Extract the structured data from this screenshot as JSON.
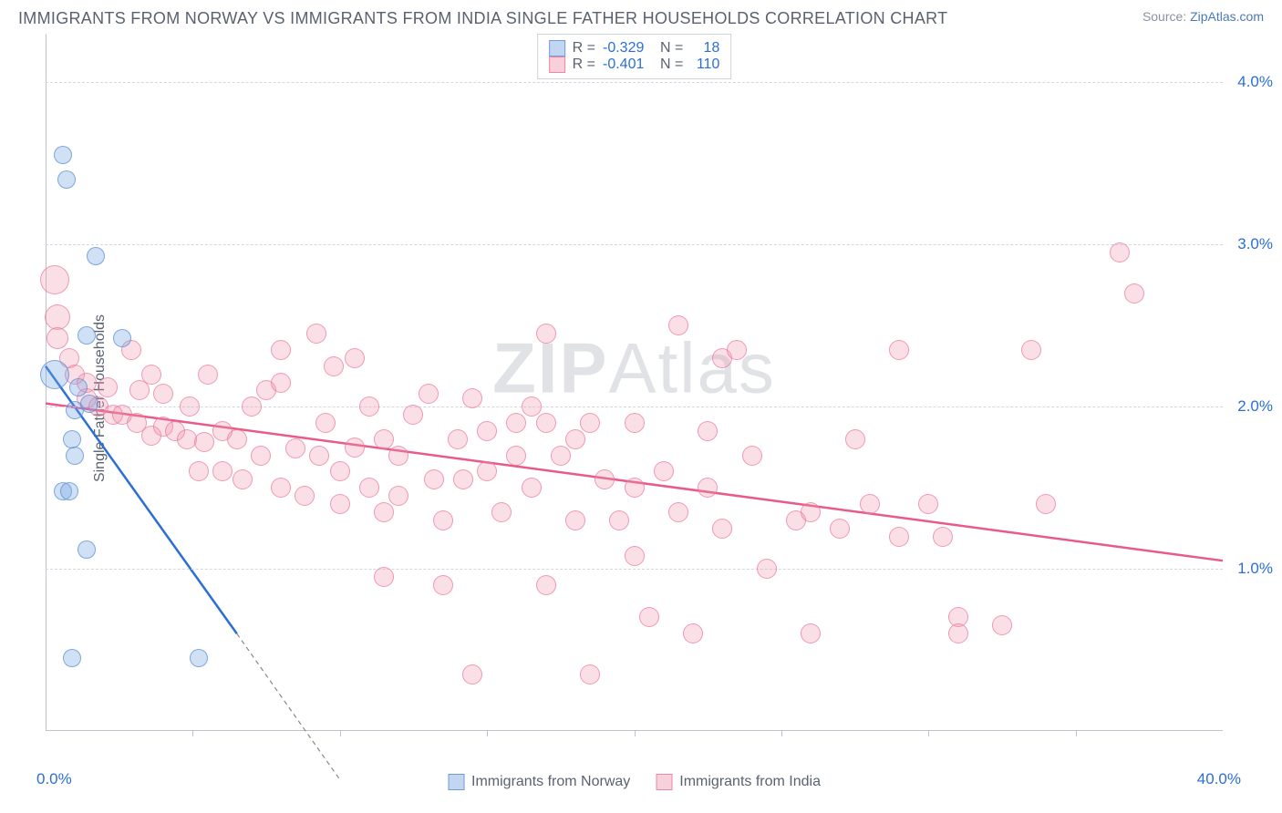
{
  "header": {
    "title": "IMMIGRANTS FROM NORWAY VS IMMIGRANTS FROM INDIA SINGLE FATHER HOUSEHOLDS CORRELATION CHART",
    "source_prefix": "Source: ",
    "source_link": "ZipAtlas.com"
  },
  "chart": {
    "type": "scatter",
    "ylabel": "Single Father Households",
    "xlim": [
      0,
      40
    ],
    "ylim": [
      0,
      4.3
    ],
    "yticks": [
      1.0,
      2.0,
      3.0,
      4.0
    ],
    "ytick_labels": [
      "1.0%",
      "2.0%",
      "3.0%",
      "4.0%"
    ],
    "xtick_positions": [
      5,
      10,
      15,
      20,
      25,
      30,
      35
    ],
    "x_start_label": "0.0%",
    "x_end_label": "40.0%",
    "background_color": "#ffffff",
    "grid_color": "#d4d8de",
    "axis_color": "#bfc4cc",
    "watermark": "ZIPAtlas",
    "legend_top": {
      "r_label": "R =",
      "n_label": "N =",
      "series": [
        {
          "name": "norway",
          "r": "-0.329",
          "n": "18"
        },
        {
          "name": "india",
          "r": "-0.401",
          "n": "110"
        }
      ]
    },
    "legend_bottom": [
      {
        "name": "norway",
        "label": "Immigrants from Norway"
      },
      {
        "name": "india",
        "label": "Immigrants from India"
      }
    ],
    "series": {
      "norway": {
        "color_fill": "rgba(120,165,225,0.35)",
        "color_stroke": "rgba(90,140,210,0.7)",
        "trend_color": "#2b6fd6",
        "trend": {
          "x1": 0,
          "y1": 2.25,
          "x2": 6.5,
          "y2": 0.6,
          "ext_x2": 10,
          "ext_y2": -0.3
        },
        "points": [
          {
            "x": 0.6,
            "y": 3.55,
            "r": 10
          },
          {
            "x": 0.7,
            "y": 3.4,
            "r": 10
          },
          {
            "x": 1.7,
            "y": 2.93,
            "r": 10
          },
          {
            "x": 1.4,
            "y": 2.44,
            "r": 10
          },
          {
            "x": 2.6,
            "y": 2.42,
            "r": 10
          },
          {
            "x": 0.3,
            "y": 2.2,
            "r": 16
          },
          {
            "x": 1.1,
            "y": 2.12,
            "r": 10
          },
          {
            "x": 1.0,
            "y": 1.98,
            "r": 10
          },
          {
            "x": 1.5,
            "y": 2.02,
            "r": 10
          },
          {
            "x": 0.9,
            "y": 1.8,
            "r": 10
          },
          {
            "x": 1.0,
            "y": 1.7,
            "r": 10
          },
          {
            "x": 0.6,
            "y": 1.48,
            "r": 10
          },
          {
            "x": 0.8,
            "y": 1.48,
            "r": 10
          },
          {
            "x": 1.4,
            "y": 1.12,
            "r": 10
          },
          {
            "x": 0.9,
            "y": 0.45,
            "r": 10
          },
          {
            "x": 5.2,
            "y": 0.45,
            "r": 10
          }
        ]
      },
      "india": {
        "color_fill": "rgba(240,150,175,0.3)",
        "color_stroke": "rgba(235,115,150,0.65)",
        "trend_color": "#e85a8a",
        "trend": {
          "x1": 0,
          "y1": 2.02,
          "x2": 40,
          "y2": 1.05
        },
        "points": [
          {
            "x": 0.3,
            "y": 2.78,
            "r": 16
          },
          {
            "x": 0.4,
            "y": 2.55,
            "r": 14
          },
          {
            "x": 0.4,
            "y": 2.42,
            "r": 12
          },
          {
            "x": 0.8,
            "y": 2.3,
            "r": 11
          },
          {
            "x": 1.0,
            "y": 2.2,
            "r": 11
          },
          {
            "x": 1.4,
            "y": 2.15,
            "r": 11
          },
          {
            "x": 1.4,
            "y": 2.05,
            "r": 11
          },
          {
            "x": 1.8,
            "y": 2.0,
            "r": 11
          },
          {
            "x": 2.1,
            "y": 2.12,
            "r": 11
          },
          {
            "x": 2.3,
            "y": 1.95,
            "r": 11
          },
          {
            "x": 2.9,
            "y": 2.35,
            "r": 11
          },
          {
            "x": 2.6,
            "y": 1.95,
            "r": 11
          },
          {
            "x": 3.2,
            "y": 2.1,
            "r": 11
          },
          {
            "x": 3.1,
            "y": 1.9,
            "r": 11
          },
          {
            "x": 3.6,
            "y": 2.2,
            "r": 11
          },
          {
            "x": 3.6,
            "y": 1.82,
            "r": 11
          },
          {
            "x": 4.0,
            "y": 1.88,
            "r": 11
          },
          {
            "x": 4.0,
            "y": 2.08,
            "r": 11
          },
          {
            "x": 4.4,
            "y": 1.85,
            "r": 11
          },
          {
            "x": 4.8,
            "y": 1.8,
            "r": 11
          },
          {
            "x": 4.9,
            "y": 2.0,
            "r": 11
          },
          {
            "x": 5.5,
            "y": 2.2,
            "r": 11
          },
          {
            "x": 5.2,
            "y": 1.6,
            "r": 11
          },
          {
            "x": 5.4,
            "y": 1.78,
            "r": 11
          },
          {
            "x": 6.0,
            "y": 1.85,
            "r": 11
          },
          {
            "x": 6.0,
            "y": 1.6,
            "r": 11
          },
          {
            "x": 6.5,
            "y": 1.8,
            "r": 11
          },
          {
            "x": 6.7,
            "y": 1.55,
            "r": 11
          },
          {
            "x": 7.0,
            "y": 2.0,
            "r": 11
          },
          {
            "x": 7.5,
            "y": 2.1,
            "r": 11
          },
          {
            "x": 7.3,
            "y": 1.7,
            "r": 11
          },
          {
            "x": 8.0,
            "y": 2.35,
            "r": 11
          },
          {
            "x": 8.0,
            "y": 2.15,
            "r": 11
          },
          {
            "x": 8.0,
            "y": 1.5,
            "r": 11
          },
          {
            "x": 8.5,
            "y": 1.74,
            "r": 11
          },
          {
            "x": 8.8,
            "y": 1.45,
            "r": 11
          },
          {
            "x": 9.2,
            "y": 2.45,
            "r": 11
          },
          {
            "x": 9.5,
            "y": 1.9,
            "r": 11
          },
          {
            "x": 9.3,
            "y": 1.7,
            "r": 11
          },
          {
            "x": 9.8,
            "y": 2.25,
            "r": 11
          },
          {
            "x": 10.0,
            "y": 1.6,
            "r": 11
          },
          {
            "x": 10.0,
            "y": 1.4,
            "r": 11
          },
          {
            "x": 10.5,
            "y": 2.3,
            "r": 11
          },
          {
            "x": 10.5,
            "y": 1.75,
            "r": 11
          },
          {
            "x": 11.0,
            "y": 2.0,
            "r": 11
          },
          {
            "x": 11.0,
            "y": 1.5,
            "r": 11
          },
          {
            "x": 11.5,
            "y": 1.8,
            "r": 11
          },
          {
            "x": 11.5,
            "y": 1.35,
            "r": 11
          },
          {
            "x": 11.5,
            "y": 0.95,
            "r": 11
          },
          {
            "x": 12.0,
            "y": 1.7,
            "r": 11
          },
          {
            "x": 12.0,
            "y": 1.45,
            "r": 11
          },
          {
            "x": 12.5,
            "y": 1.95,
            "r": 11
          },
          {
            "x": 13.0,
            "y": 2.08,
            "r": 11
          },
          {
            "x": 13.2,
            "y": 1.55,
            "r": 11
          },
          {
            "x": 13.5,
            "y": 1.3,
            "r": 11
          },
          {
            "x": 13.5,
            "y": 0.9,
            "r": 11
          },
          {
            "x": 14.0,
            "y": 1.8,
            "r": 11
          },
          {
            "x": 14.2,
            "y": 1.55,
            "r": 11
          },
          {
            "x": 14.5,
            "y": 2.05,
            "r": 11
          },
          {
            "x": 14.5,
            "y": 0.35,
            "r": 11
          },
          {
            "x": 15.0,
            "y": 1.85,
            "r": 11
          },
          {
            "x": 15.0,
            "y": 1.6,
            "r": 11
          },
          {
            "x": 15.5,
            "y": 1.35,
            "r": 11
          },
          {
            "x": 16.0,
            "y": 1.9,
            "r": 11
          },
          {
            "x": 16.0,
            "y": 1.7,
            "r": 11
          },
          {
            "x": 16.5,
            "y": 2.0,
            "r": 11
          },
          {
            "x": 16.5,
            "y": 1.5,
            "r": 11
          },
          {
            "x": 17.0,
            "y": 2.45,
            "r": 11
          },
          {
            "x": 17.0,
            "y": 1.9,
            "r": 11
          },
          {
            "x": 17.0,
            "y": 0.9,
            "r": 11
          },
          {
            "x": 17.5,
            "y": 1.7,
            "r": 11
          },
          {
            "x": 18.0,
            "y": 1.8,
            "r": 11
          },
          {
            "x": 18.0,
            "y": 1.3,
            "r": 11
          },
          {
            "x": 18.5,
            "y": 1.9,
            "r": 11
          },
          {
            "x": 18.5,
            "y": 0.35,
            "r": 11
          },
          {
            "x": 19.0,
            "y": 1.55,
            "r": 11
          },
          {
            "x": 19.5,
            "y": 1.3,
            "r": 11
          },
          {
            "x": 20.0,
            "y": 1.9,
            "r": 11
          },
          {
            "x": 20.0,
            "y": 1.5,
            "r": 11
          },
          {
            "x": 20.0,
            "y": 1.08,
            "r": 11
          },
          {
            "x": 20.5,
            "y": 0.7,
            "r": 11
          },
          {
            "x": 21.0,
            "y": 1.6,
            "r": 11
          },
          {
            "x": 21.5,
            "y": 2.5,
            "r": 11
          },
          {
            "x": 21.5,
            "y": 1.35,
            "r": 11
          },
          {
            "x": 22.0,
            "y": 0.6,
            "r": 11
          },
          {
            "x": 22.5,
            "y": 1.85,
            "r": 11
          },
          {
            "x": 22.5,
            "y": 1.5,
            "r": 11
          },
          {
            "x": 23.0,
            "y": 2.3,
            "r": 11
          },
          {
            "x": 23.5,
            "y": 2.35,
            "r": 11
          },
          {
            "x": 23.0,
            "y": 1.25,
            "r": 11
          },
          {
            "x": 24.0,
            "y": 1.7,
            "r": 11
          },
          {
            "x": 24.5,
            "y": 1.0,
            "r": 11
          },
          {
            "x": 25.5,
            "y": 1.3,
            "r": 11
          },
          {
            "x": 26.0,
            "y": 1.35,
            "r": 11
          },
          {
            "x": 26.0,
            "y": 0.6,
            "r": 11
          },
          {
            "x": 27.0,
            "y": 1.25,
            "r": 11
          },
          {
            "x": 27.5,
            "y": 1.8,
            "r": 11
          },
          {
            "x": 28.0,
            "y": 1.4,
            "r": 11
          },
          {
            "x": 29.0,
            "y": 2.35,
            "r": 11
          },
          {
            "x": 29.0,
            "y": 1.2,
            "r": 11
          },
          {
            "x": 30.0,
            "y": 1.4,
            "r": 11
          },
          {
            "x": 30.5,
            "y": 1.2,
            "r": 11
          },
          {
            "x": 31.0,
            "y": 0.7,
            "r": 11
          },
          {
            "x": 31.0,
            "y": 0.6,
            "r": 11
          },
          {
            "x": 32.5,
            "y": 0.65,
            "r": 11
          },
          {
            "x": 33.5,
            "y": 2.35,
            "r": 11
          },
          {
            "x": 34.0,
            "y": 1.4,
            "r": 11
          },
          {
            "x": 36.5,
            "y": 2.95,
            "r": 11
          },
          {
            "x": 37.0,
            "y": 2.7,
            "r": 11
          }
        ]
      }
    }
  }
}
